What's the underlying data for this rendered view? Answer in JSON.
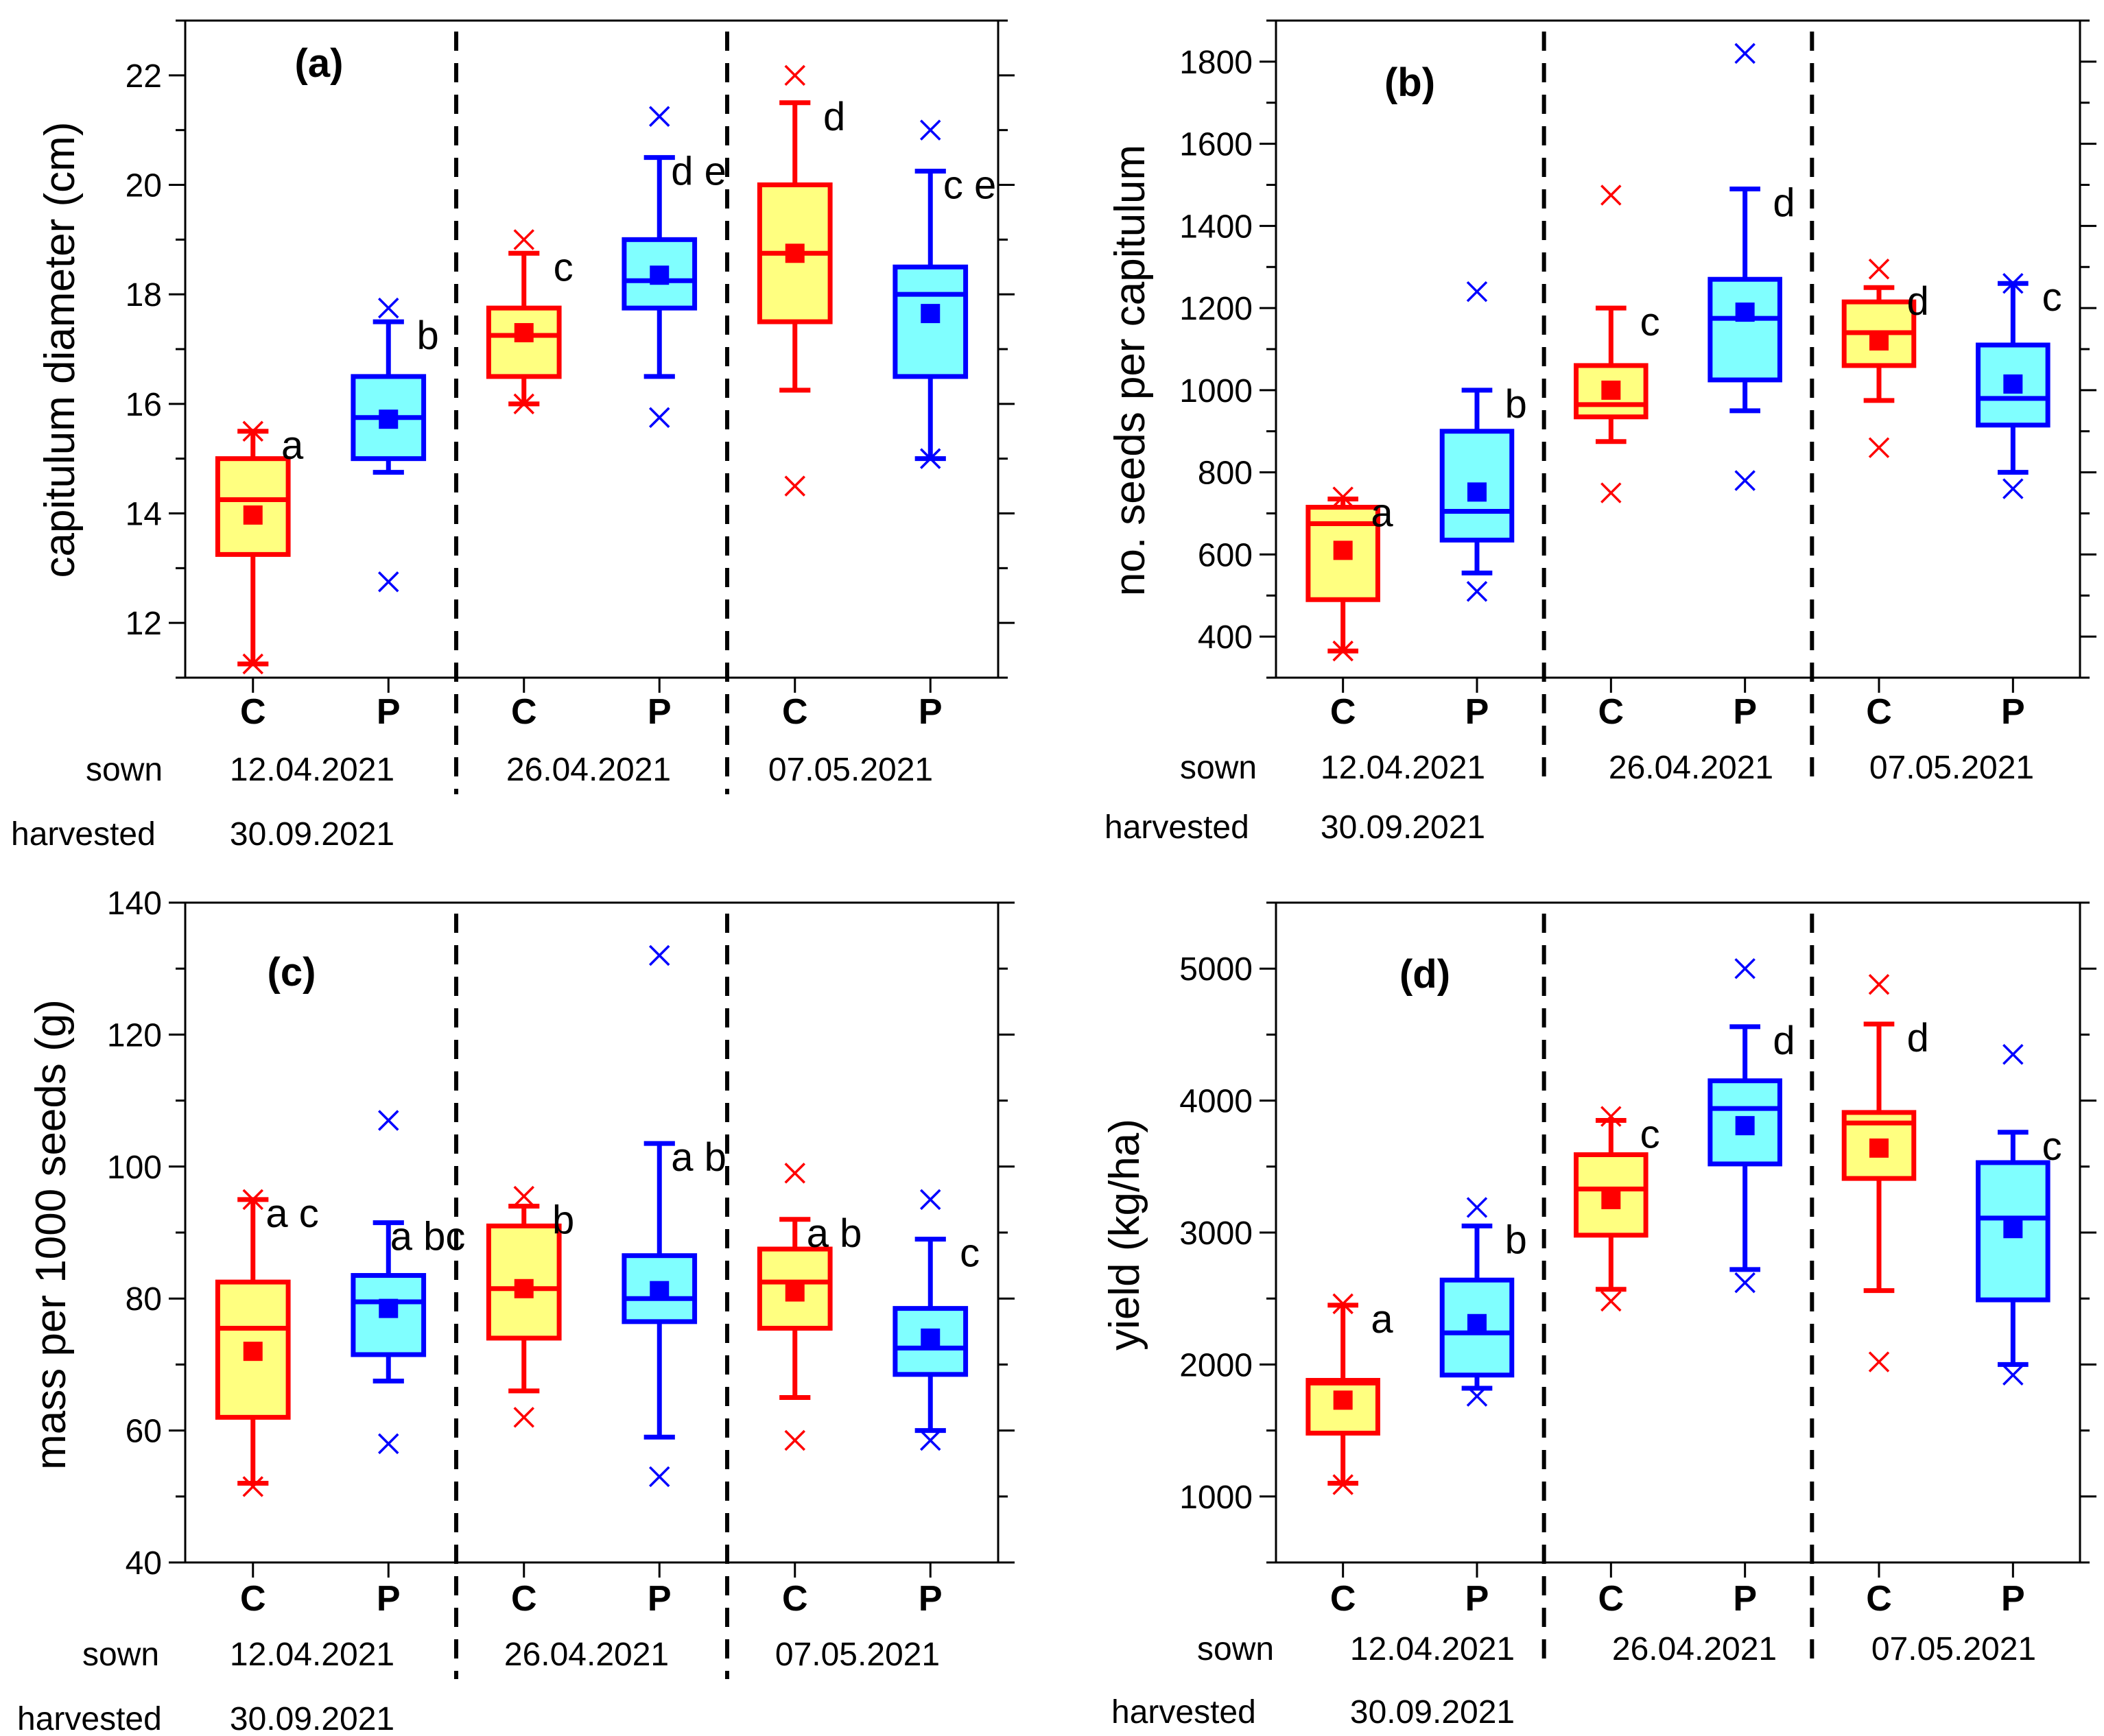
{
  "colors": {
    "C_fill": "#ffff80",
    "C_stroke": "#ff0000",
    "P_fill": "#80ffff",
    "P_stroke": "#0000ff",
    "axis": "#000000"
  },
  "chart_data": [
    {
      "type": "box",
      "panel": "a",
      "title": "(a)",
      "ylabel": "capitulum diameter (cm)",
      "ylim": [
        11,
        23
      ],
      "yticks": [
        12,
        14,
        16,
        18,
        20,
        22
      ],
      "categories": [
        "C",
        "P",
        "C",
        "P",
        "C",
        "P"
      ],
      "groups": [
        "C",
        "P",
        "C",
        "P",
        "C",
        "P"
      ],
      "boxes": [
        {
          "q1": 13.25,
          "median": 14.25,
          "q3": 15.0,
          "whisker_low": 11.25,
          "whisker_high": 15.5,
          "mean": 13.97,
          "outliers": [
            11.25,
            15.5
          ],
          "letters": "a"
        },
        {
          "q1": 15.0,
          "median": 15.75,
          "q3": 16.5,
          "whisker_low": 14.75,
          "whisker_high": 17.5,
          "mean": 15.72,
          "outliers": [
            12.75,
            17.75
          ],
          "letters": "b"
        },
        {
          "q1": 16.5,
          "median": 17.25,
          "q3": 17.75,
          "whisker_low": 16.0,
          "whisker_high": 18.75,
          "mean": 17.3,
          "outliers": [
            16.0,
            19.0
          ],
          "letters": "c"
        },
        {
          "q1": 17.75,
          "median": 18.25,
          "q3": 19.0,
          "whisker_low": 16.5,
          "whisker_high": 20.5,
          "mean": 18.35,
          "outliers": [
            15.75,
            21.25
          ],
          "letters": "d e"
        },
        {
          "q1": 17.5,
          "median": 18.75,
          "q3": 20.0,
          "whisker_low": 16.25,
          "whisker_high": 21.5,
          "mean": 18.75,
          "outliers": [
            14.5,
            22.0
          ],
          "letters": "d"
        },
        {
          "q1": 16.5,
          "median": 18.0,
          "q3": 18.5,
          "whisker_low": 15.0,
          "whisker_high": 20.25,
          "mean": 17.65,
          "outliers": [
            15.0,
            21.0
          ],
          "letters": "c e"
        }
      ],
      "sown_label": "sown",
      "harvested_label": "harvested",
      "sown_dates": [
        "12.04.2021",
        "26.04.2021",
        "07.05.2021"
      ],
      "harvested_date": "30.09.2021"
    },
    {
      "type": "box",
      "panel": "b",
      "title": "(b)",
      "ylabel": "no. seeds per capitulum",
      "ylim": [
        300,
        1900
      ],
      "yticks": [
        400,
        600,
        800,
        1000,
        1200,
        1400,
        1600,
        1800
      ],
      "categories": [
        "C",
        "P",
        "C",
        "P",
        "C",
        "P"
      ],
      "groups": [
        "C",
        "P",
        "C",
        "P",
        "C",
        "P"
      ],
      "boxes": [
        {
          "q1": 490,
          "median": 675,
          "q3": 715,
          "whisker_low": 365,
          "whisker_high": 735,
          "mean": 610,
          "outliers": [
            365,
            740
          ],
          "letters": "a"
        },
        {
          "q1": 635,
          "median": 705,
          "q3": 900,
          "whisker_low": 555,
          "whisker_high": 1000,
          "mean": 752,
          "outliers": [
            510,
            1240
          ],
          "letters": "b"
        },
        {
          "q1": 935,
          "median": 965,
          "q3": 1060,
          "whisker_low": 875,
          "whisker_high": 1200,
          "mean": 1000,
          "outliers": [
            750,
            1475
          ],
          "letters": "c"
        },
        {
          "q1": 1025,
          "median": 1175,
          "q3": 1270,
          "whisker_low": 950,
          "whisker_high": 1490,
          "mean": 1190,
          "outliers": [
            780,
            1820
          ],
          "letters": "d"
        },
        {
          "q1": 1060,
          "median": 1140,
          "q3": 1215,
          "whisker_low": 975,
          "whisker_high": 1250,
          "mean": 1120,
          "outliers": [
            860,
            1295
          ],
          "letters": "d"
        },
        {
          "q1": 915,
          "median": 980,
          "q3": 1110,
          "whisker_low": 800,
          "whisker_high": 1260,
          "mean": 1015,
          "outliers": [
            760,
            1260
          ],
          "letters": "c"
        }
      ],
      "sown_label": "sown",
      "harvested_label": "harvested",
      "sown_dates": [
        "12.04.2021",
        "26.04.2021",
        "07.05.2021"
      ],
      "harvested_date": "30.09.2021"
    },
    {
      "type": "box",
      "panel": "c",
      "title": "(c)",
      "ylabel": "mass per 1000 seeds (g)",
      "ylim": [
        40,
        140
      ],
      "yticks": [
        40,
        60,
        80,
        100,
        120,
        140
      ],
      "categories": [
        "C",
        "P",
        "C",
        "P",
        "C",
        "P"
      ],
      "groups": [
        "C",
        "P",
        "C",
        "P",
        "C",
        "P"
      ],
      "boxes": [
        {
          "q1": 62,
          "median": 75.5,
          "q3": 82.5,
          "whisker_low": 52,
          "whisker_high": 95,
          "mean": 72,
          "outliers": [
            51.5,
            95
          ],
          "letters": "a c"
        },
        {
          "q1": 71.5,
          "median": 79.5,
          "q3": 83.5,
          "whisker_low": 67.5,
          "whisker_high": 91.5,
          "mean": 78.5,
          "outliers": [
            58,
            107
          ],
          "letters": "a bc"
        },
        {
          "q1": 74,
          "median": 81.5,
          "q3": 91,
          "whisker_low": 66,
          "whisker_high": 94,
          "mean": 81.5,
          "outliers": [
            62,
            95.5
          ],
          "letters": "b"
        },
        {
          "q1": 76.5,
          "median": 80,
          "q3": 86.5,
          "whisker_low": 59,
          "whisker_high": 103.5,
          "mean": 81.2,
          "outliers": [
            53,
            132
          ],
          "letters": "a b"
        },
        {
          "q1": 75.5,
          "median": 82.5,
          "q3": 87.5,
          "whisker_low": 65,
          "whisker_high": 92,
          "mean": 81,
          "outliers": [
            58.5,
            99
          ],
          "letters": "a b"
        },
        {
          "q1": 68.5,
          "median": 72.5,
          "q3": 78.5,
          "whisker_low": 60,
          "whisker_high": 89,
          "mean": 74,
          "outliers": [
            58.5,
            95
          ],
          "letters": "c"
        }
      ],
      "sown_label": "sown",
      "harvested_label": "harvested",
      "sown_dates": [
        "12.04.2021",
        "26.04.2021",
        "07.05.2021"
      ],
      "harvested_date": "30.09.2021"
    },
    {
      "type": "box",
      "panel": "d",
      "title": "(d)",
      "ylabel": "yield (kg/ha)",
      "ylim": [
        500,
        5500
      ],
      "yticks": [
        1000,
        2000,
        3000,
        4000,
        5000
      ],
      "categories": [
        "C",
        "P",
        "C",
        "P",
        "C",
        "P"
      ],
      "groups": [
        "C",
        "P",
        "C",
        "P",
        "C",
        "P"
      ],
      "boxes": [
        {
          "q1": 1480,
          "median": 1860,
          "q3": 1880,
          "whisker_low": 1100,
          "whisker_high": 2450,
          "mean": 1730,
          "outliers": [
            1090,
            2460
          ],
          "letters": "a"
        },
        {
          "q1": 1920,
          "median": 2240,
          "q3": 2640,
          "whisker_low": 1820,
          "whisker_high": 3050,
          "mean": 2310,
          "outliers": [
            1760,
            3190
          ],
          "letters": "b"
        },
        {
          "q1": 2980,
          "median": 3330,
          "q3": 3590,
          "whisker_low": 2570,
          "whisker_high": 3850,
          "mean": 3250,
          "outliers": [
            2480,
            3880
          ],
          "letters": "c"
        },
        {
          "q1": 3520,
          "median": 3940,
          "q3": 4150,
          "whisker_low": 2720,
          "whisker_high": 4560,
          "mean": 3810,
          "outliers": [
            2620,
            5000
          ],
          "letters": "d"
        },
        {
          "q1": 3410,
          "median": 3830,
          "q3": 3910,
          "whisker_low": 2560,
          "whisker_high": 4580,
          "mean": 3640,
          "outliers": [
            2020,
            4880
          ],
          "letters": "d"
        },
        {
          "q1": 2490,
          "median": 3110,
          "q3": 3530,
          "whisker_low": 2000,
          "whisker_high": 3760,
          "mean": 3030,
          "outliers": [
            1920,
            4350
          ],
          "letters": "c"
        }
      ],
      "sown_label": "sown",
      "harvested_label": "harvested",
      "sown_dates": [
        "12.04.2021",
        "26.04.2021",
        "07.05.2021"
      ],
      "harvested_date": "30.09.2021"
    }
  ]
}
